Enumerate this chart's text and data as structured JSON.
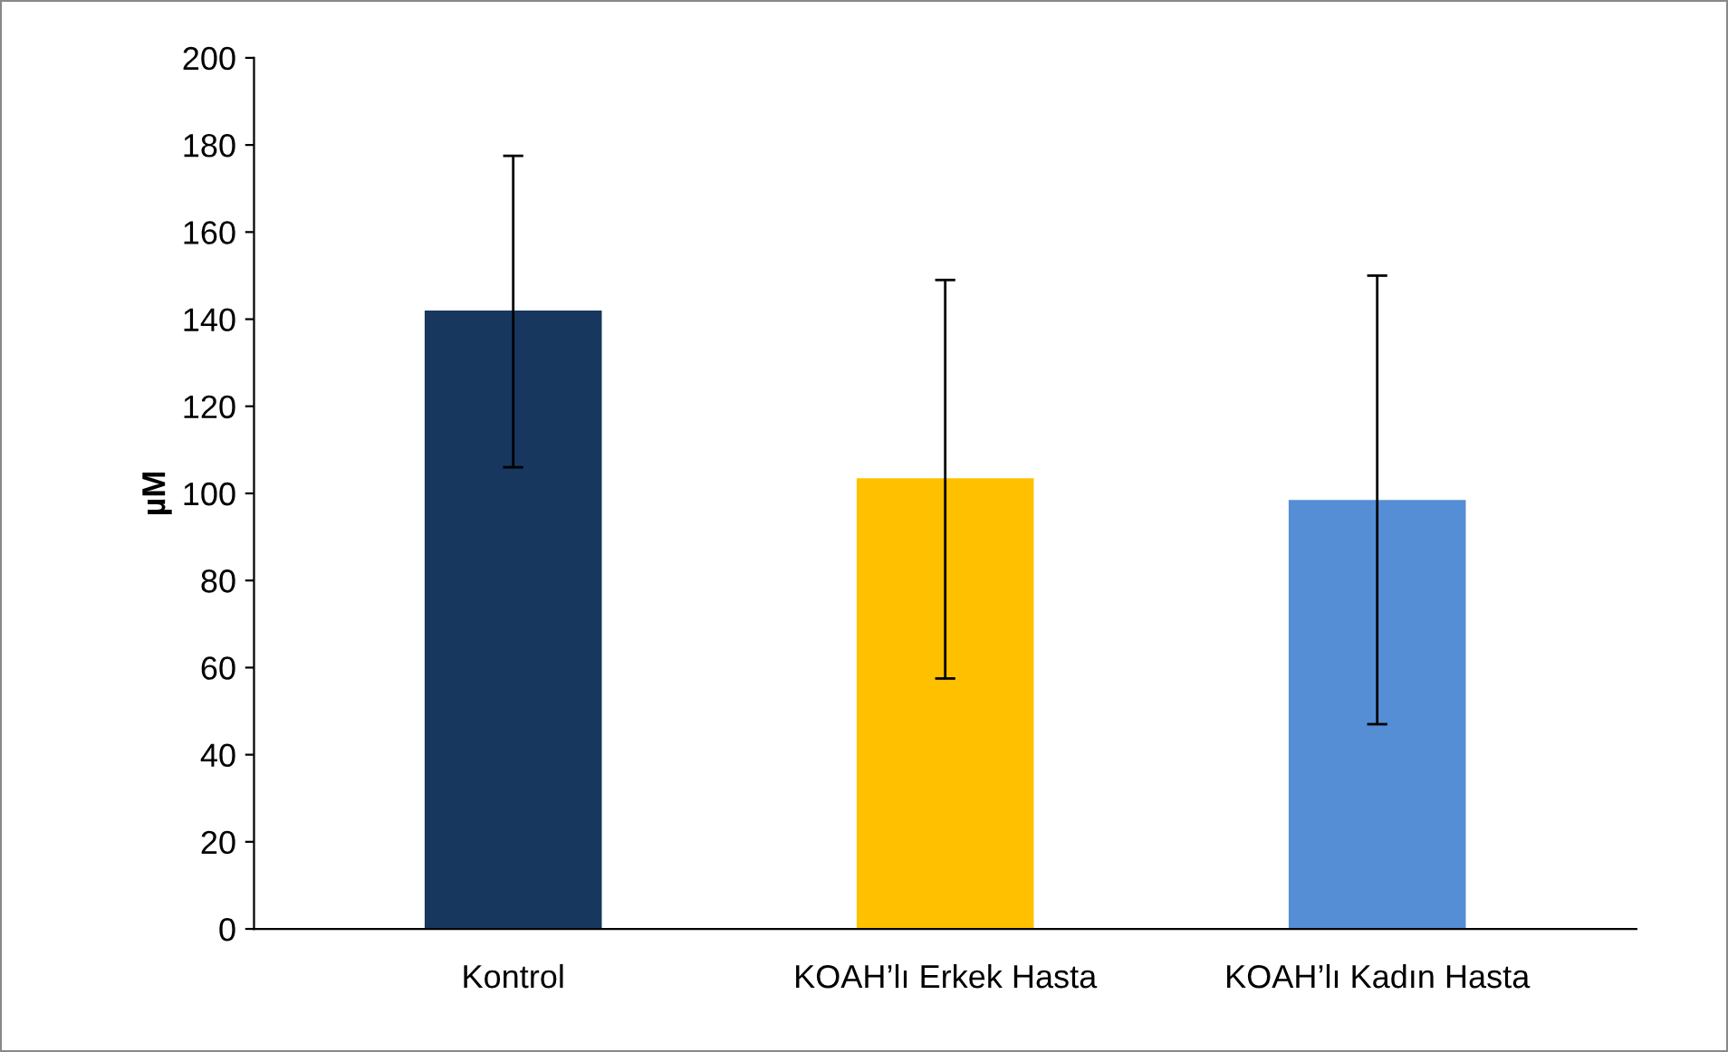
{
  "chart_data": {
    "type": "bar",
    "ylabel": "µM",
    "categories": [
      "Kontrol",
      "KOAH’lı Erkek Hasta",
      "KOAH’lı Kadın Hasta"
    ],
    "values": [
      142,
      103.5,
      98.5
    ],
    "colors": [
      "#17375e",
      "#ffc000",
      "#558ed5"
    ],
    "errors": [
      [
        106,
        177.5
      ],
      [
        57.5,
        149
      ],
      [
        47,
        150
      ]
    ],
    "ylim": [
      0,
      200
    ],
    "yticks": [
      0,
      20,
      40,
      60,
      80,
      100,
      120,
      140,
      160,
      180,
      200
    ],
    "grid": false,
    "legend": false
  }
}
